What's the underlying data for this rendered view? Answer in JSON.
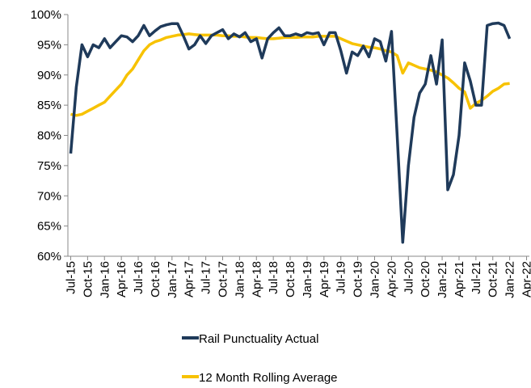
{
  "chart_data": {
    "type": "line",
    "categories": [
      "Jul-15",
      null,
      null,
      "Oct-15",
      null,
      null,
      "Jan-16",
      null,
      null,
      "Apr-16",
      null,
      null,
      "Jul-16",
      null,
      null,
      "Oct-16",
      null,
      null,
      "Jan-17",
      null,
      null,
      "Apr-17",
      null,
      null,
      "Jul-17",
      null,
      null,
      "Oct-17",
      null,
      null,
      "Jan-18",
      null,
      null,
      "Apr-18",
      null,
      null,
      "Jul-18",
      null,
      null,
      "Oct-18",
      null,
      null,
      "Jan-19",
      null,
      null,
      "Apr-19",
      null,
      null,
      "Jul-19",
      null,
      null,
      "Oct-19",
      null,
      null,
      "Jan-20",
      null,
      null,
      "Apr-20",
      null,
      null,
      "Jul-20",
      null,
      null,
      "Oct-20",
      null,
      null,
      "Jan-21",
      null,
      null,
      "Apr-21",
      null,
      null,
      "Jul-21",
      null,
      null,
      "Oct-21",
      null,
      null,
      "Jan-22",
      null,
      null,
      "Apr-22"
    ],
    "series": [
      {
        "name": "Rail Punctuality Actual",
        "color": "#1f3a5a",
        "values": [
          77,
          88,
          95,
          93,
          95,
          94.5,
          96,
          94.5,
          95.5,
          96.5,
          96.3,
          95.5,
          96.5,
          98.2,
          96.5,
          97.3,
          98,
          98.3,
          98.5,
          98.5,
          96.5,
          94.3,
          95,
          96.5,
          95.2,
          96.5,
          97,
          97.5,
          96,
          96.8,
          96.3,
          97,
          95.5,
          96,
          92.8,
          96,
          97,
          97.8,
          96.5,
          96.5,
          96.8,
          96.5,
          97,
          96.8,
          97,
          95,
          97,
          97,
          94,
          90.3,
          93.8,
          93.2,
          94.8,
          93,
          96,
          95.5,
          92.3,
          97.2,
          80,
          62.3,
          75,
          83,
          87,
          88.5,
          93.2,
          88.5,
          95.8,
          71,
          73.5,
          80,
          92,
          89,
          85,
          85,
          98.2,
          98.5,
          98.6,
          98.2,
          96,
          null,
          null,
          null
        ]
      },
      {
        "name": "12 Month Rolling Average",
        "color": "#f7c200",
        "values": [
          83.5,
          83.3,
          83.5,
          84,
          84.5,
          85,
          85.5,
          86.5,
          87.5,
          88.5,
          90,
          91,
          92.5,
          94,
          95,
          95.5,
          95.8,
          96.2,
          96.4,
          96.6,
          96.7,
          96.8,
          96.7,
          96.6,
          96.6,
          96.6,
          96.6,
          96.5,
          96.5,
          96.4,
          96.4,
          96.3,
          96.2,
          96.2,
          96.1,
          96,
          96,
          96.1,
          96.2,
          96.2,
          96.2,
          96.3,
          96.3,
          96.3,
          96.4,
          96.4,
          96.4,
          96.4,
          96,
          95.6,
          95.2,
          95,
          94.8,
          94.6,
          94.5,
          94.3,
          94,
          93.8,
          93.2,
          90.3,
          92,
          91.6,
          91.2,
          91,
          90.8,
          90.5,
          90,
          89.5,
          88.7,
          87.8,
          87.2,
          84.5,
          85.3,
          85.8,
          86.5,
          87.3,
          87.8,
          88.5,
          88.6,
          null,
          null,
          null
        ]
      }
    ],
    "ylim": [
      60,
      100
    ],
    "yticks": [
      {
        "value": 60,
        "label": "60%"
      },
      {
        "value": 65,
        "label": "65%"
      },
      {
        "value": 70,
        "label": "70%"
      },
      {
        "value": 75,
        "label": "75%"
      },
      {
        "value": 80,
        "label": "80%"
      },
      {
        "value": 85,
        "label": "85%"
      },
      {
        "value": 90,
        "label": "90%"
      },
      {
        "value": 95,
        "label": "95%"
      },
      {
        "value": 100,
        "label": "100%"
      }
    ],
    "grid": false,
    "legend": "bottom"
  }
}
